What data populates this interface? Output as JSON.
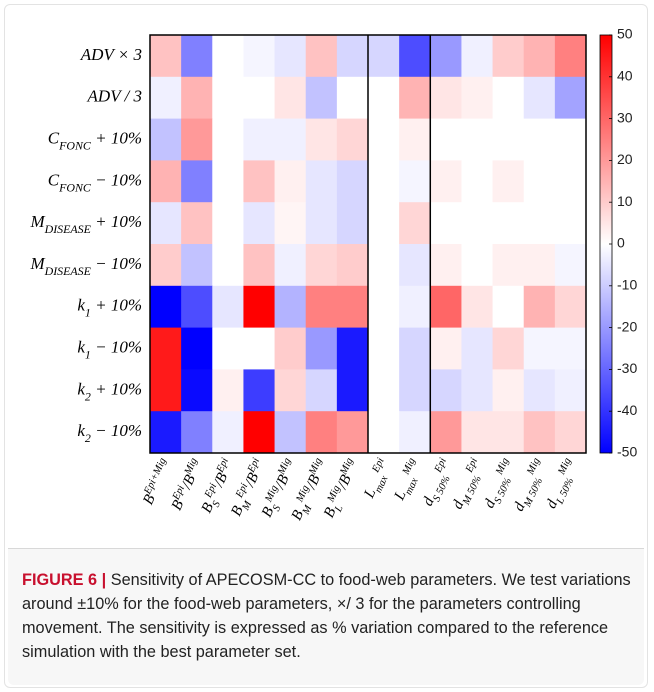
{
  "chart_data": {
    "type": "heatmap",
    "colormap": [
      "#0000ff",
      "#ffffff",
      "#ff0000"
    ],
    "row_labels": [
      [
        {
          "text": "ADV × 3"
        }
      ],
      [
        {
          "text": "ADV / 3"
        }
      ],
      [
        {
          "text": "C"
        },
        {
          "text": "FONC",
          "pos": "sub"
        },
        {
          "text": " + 10%"
        }
      ],
      [
        {
          "text": "C"
        },
        {
          "text": "FONC",
          "pos": "sub"
        },
        {
          "text": " − 10%"
        }
      ],
      [
        {
          "text": "M"
        },
        {
          "text": "DISEASE",
          "pos": "sub"
        },
        {
          "text": " + 10%"
        }
      ],
      [
        {
          "text": "M"
        },
        {
          "text": "DISEASE",
          "pos": "sub"
        },
        {
          "text": " − 10%"
        }
      ],
      [
        {
          "text": "k"
        },
        {
          "text": "1",
          "pos": "sub"
        },
        {
          "text": " + 10%"
        }
      ],
      [
        {
          "text": "k"
        },
        {
          "text": "1",
          "pos": "sub"
        },
        {
          "text": " − 10%"
        }
      ],
      [
        {
          "text": "k"
        },
        {
          "text": "2",
          "pos": "sub"
        },
        {
          "text": " + 10%"
        }
      ],
      [
        {
          "text": "k"
        },
        {
          "text": "2",
          "pos": "sub"
        },
        {
          "text": " − 10%"
        }
      ]
    ],
    "col_labels": [
      [
        {
          "text": "B"
        },
        {
          "text": "Epi+Mig",
          "pos": "sup"
        }
      ],
      [
        {
          "text": "B"
        },
        {
          "text": "Epi",
          "pos": "sup"
        },
        {
          "text": "/B"
        },
        {
          "text": "Mig",
          "pos": "sup"
        }
      ],
      [
        {
          "text": "B"
        },
        {
          "text": "S",
          "pos": "sub"
        },
        {
          "text": "Epi",
          "pos": "sup"
        },
        {
          "text": "/B"
        },
        {
          "text": "Epi",
          "pos": "sup"
        }
      ],
      [
        {
          "text": "B"
        },
        {
          "text": "M",
          "pos": "sub"
        },
        {
          "text": "Epi",
          "pos": "sup"
        },
        {
          "text": "/B"
        },
        {
          "text": "Epi",
          "pos": "sup"
        }
      ],
      [
        {
          "text": "B"
        },
        {
          "text": "S",
          "pos": "sub"
        },
        {
          "text": "Mig",
          "pos": "sup"
        },
        {
          "text": "/B"
        },
        {
          "text": "Mig",
          "pos": "sup"
        }
      ],
      [
        {
          "text": "B"
        },
        {
          "text": "M",
          "pos": "sub"
        },
        {
          "text": "Mig",
          "pos": "sup"
        },
        {
          "text": "/B"
        },
        {
          "text": "Mig",
          "pos": "sup"
        }
      ],
      [
        {
          "text": "B"
        },
        {
          "text": "L",
          "pos": "sub"
        },
        {
          "text": "Mig",
          "pos": "sup"
        },
        {
          "text": "/B"
        },
        {
          "text": "Mig",
          "pos": "sup"
        }
      ],
      [
        {
          "text": "L"
        },
        {
          "text": "max",
          "pos": "sub"
        },
        {
          "text": "Epi",
          "pos": "sup"
        }
      ],
      [
        {
          "text": "L"
        },
        {
          "text": "max",
          "pos": "sub"
        },
        {
          "text": "Mig",
          "pos": "sup"
        }
      ],
      [
        {
          "text": "d"
        },
        {
          "text": "S 50%",
          "pos": "sub"
        },
        {
          "text": "Epi",
          "pos": "sup"
        }
      ],
      [
        {
          "text": "d"
        },
        {
          "text": "M 50%",
          "pos": "sub"
        },
        {
          "text": "Epi",
          "pos": "sup"
        }
      ],
      [
        {
          "text": "d"
        },
        {
          "text": "S 50%",
          "pos": "sub"
        },
        {
          "text": "Mig",
          "pos": "sup"
        }
      ],
      [
        {
          "text": "d"
        },
        {
          "text": "M 50%",
          "pos": "sub"
        },
        {
          "text": "Mig",
          "pos": "sup"
        }
      ],
      [
        {
          "text": "d"
        },
        {
          "text": "L 50%",
          "pos": "sub"
        },
        {
          "text": "Mig",
          "pos": "sup"
        }
      ]
    ],
    "values": [
      [
        12,
        -25,
        0,
        -2,
        -5,
        12,
        -8,
        -8,
        -35,
        -20,
        -3,
        10,
        15,
        25
      ],
      [
        -3,
        15,
        0,
        0,
        5,
        -12,
        0,
        0,
        15,
        5,
        3,
        0,
        -5,
        -18
      ],
      [
        -12,
        20,
        0,
        -3,
        -3,
        5,
        8,
        0,
        3,
        0,
        0,
        0,
        0,
        0
      ],
      [
        15,
        -25,
        0,
        12,
        3,
        -5,
        -8,
        0,
        -2,
        3,
        0,
        3,
        0,
        0
      ],
      [
        -5,
        12,
        0,
        -5,
        2,
        -5,
        -8,
        0,
        8,
        0,
        0,
        0,
        0,
        0
      ],
      [
        10,
        -12,
        0,
        12,
        -3,
        8,
        10,
        0,
        -5,
        3,
        0,
        3,
        3,
        -2
      ],
      [
        -50,
        -35,
        -5,
        50,
        -15,
        25,
        25,
        0,
        -3,
        30,
        5,
        0,
        15,
        8
      ],
      [
        45,
        -50,
        0,
        0,
        10,
        -20,
        -45,
        0,
        -8,
        3,
        -5,
        8,
        -2,
        -2
      ],
      [
        45,
        -48,
        3,
        -38,
        8,
        -8,
        -45,
        0,
        -8,
        -8,
        -5,
        3,
        -5,
        -3
      ],
      [
        -45,
        -25,
        -3,
        50,
        -12,
        25,
        20,
        0,
        -3,
        20,
        5,
        5,
        12,
        8
      ]
    ],
    "colorbar_lim": [
      -50,
      50
    ],
    "colorbar_ticks": [
      50,
      40,
      30,
      20,
      10,
      0,
      -10,
      -20,
      -30,
      -40,
      -50
    ]
  },
  "caption": {
    "label": "FIGURE 6 |",
    "text": "Sensitivity of APECOSM-CC to food-web parameters. We test variations around ±10% for the food-web parameters, ×/ 3 for the parameters controlling movement. The sensitivity is expressed as % variation compared to the reference simulation with the best parameter set."
  }
}
